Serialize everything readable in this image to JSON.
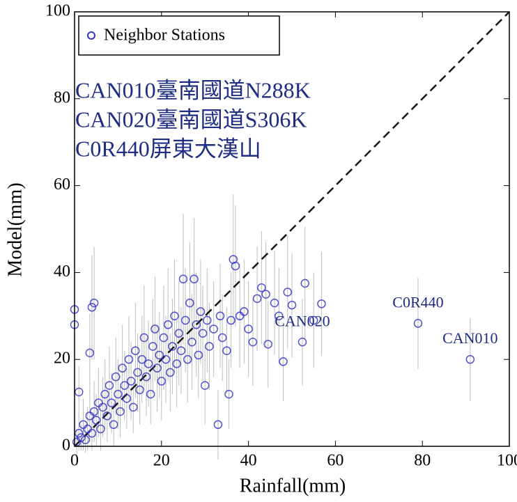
{
  "chart_data": {
    "type": "scatter",
    "xlabel": "Rainfall(mm)",
    "ylabel": "Model(mm)",
    "station_labels": [
      "CAN010臺南國道N288K",
      "CAN020臺南國道S306K",
      "C0R440屏東大漢山"
    ],
    "xlim": [
      0,
      100
    ],
    "ylim": [
      0,
      100
    ],
    "xticks": [
      0,
      20,
      40,
      60,
      80,
      100
    ],
    "yticks": [
      0,
      20,
      40,
      60,
      80,
      100
    ],
    "legend": "upper left",
    "identity_line": true,
    "series": [
      {
        "name": "Neighbor Stations",
        "color": "#3535c8",
        "error_color": "#bdbdbd",
        "x": [
          0.5,
          1,
          1.5,
          2,
          2.5,
          3,
          3.5,
          4,
          4.5,
          5,
          5.5,
          6,
          6.5,
          7,
          7.5,
          8,
          8.5,
          9,
          9.5,
          10,
          10.5,
          11,
          11.5,
          12,
          12.5,
          13,
          13.5,
          14,
          14.5,
          15,
          15.5,
          16,
          16.5,
          17,
          17.5,
          18,
          18.5,
          19,
          19.5,
          20,
          20.5,
          21,
          21.5,
          22,
          22.5,
          23,
          23.5,
          24,
          24.5,
          25,
          25.5,
          26,
          26.5,
          27,
          27.5,
          28,
          28.5,
          29,
          29.5,
          30,
          30.5,
          31,
          32,
          33,
          33.5,
          34,
          35,
          35.5,
          36,
          36.5,
          37,
          38,
          39,
          40,
          41,
          42,
          43,
          44,
          44.5,
          46,
          47,
          48,
          49,
          50,
          52.4,
          53,
          55,
          56.8,
          0,
          0,
          4,
          4.5,
          3.5,
          1,
          79,
          91
        ],
        "values": [
          1,
          3,
          2,
          5,
          1.5,
          4,
          7,
          3,
          8,
          6,
          10,
          4,
          9,
          12,
          7,
          14,
          10,
          5,
          16,
          12,
          8,
          18,
          14,
          11,
          20,
          15,
          9,
          22,
          17,
          13,
          20,
          25,
          16,
          19,
          12,
          23,
          27,
          18,
          21,
          15,
          25,
          20,
          28,
          17,
          23,
          30,
          19,
          26,
          22,
          38.5,
          29,
          20,
          33,
          24,
          38.5,
          28,
          21,
          31,
          26,
          14,
          29,
          23,
          27,
          5,
          30,
          25,
          22,
          12,
          29,
          43,
          41.5,
          30,
          31,
          27,
          24,
          34,
          36.5,
          35,
          23.5,
          33,
          30,
          19.5,
          35.5,
          32.5,
          24,
          37.5,
          29,
          32.8,
          31.5,
          28,
          32,
          33,
          21.5,
          12.5,
          28.3,
          20
        ],
        "errors": [
          3,
          4,
          3,
          6,
          3,
          5,
          6,
          4,
          7,
          6,
          8,
          5,
          7,
          8,
          6,
          9,
          7,
          5,
          9,
          8,
          6,
          10,
          8,
          7,
          10,
          9,
          6,
          11,
          9,
          8,
          10,
          12,
          9,
          10,
          7,
          11,
          12,
          10,
          10,
          9,
          12,
          10,
          13,
          9,
          11,
          13,
          10,
          12,
          10,
          15,
          12,
          10,
          14,
          11,
          14,
          12,
          10,
          12,
          11,
          9,
          12,
          10,
          11,
          8,
          12,
          10,
          10,
          8,
          11,
          15,
          14,
          12,
          12,
          11,
          10,
          12,
          13,
          12,
          10,
          12,
          11,
          9,
          13,
          12,
          10,
          13,
          11,
          12,
          10,
          9,
          12,
          13,
          9,
          6,
          10.5,
          9.5
        ]
      }
    ],
    "annotations": [
      {
        "text": "CAN020",
        "x": 52.4,
        "y": 24
      },
      {
        "text": "C0R440",
        "x": 79,
        "y": 28.3
      },
      {
        "text": "CAN010",
        "x": 91,
        "y": 20
      }
    ]
  }
}
